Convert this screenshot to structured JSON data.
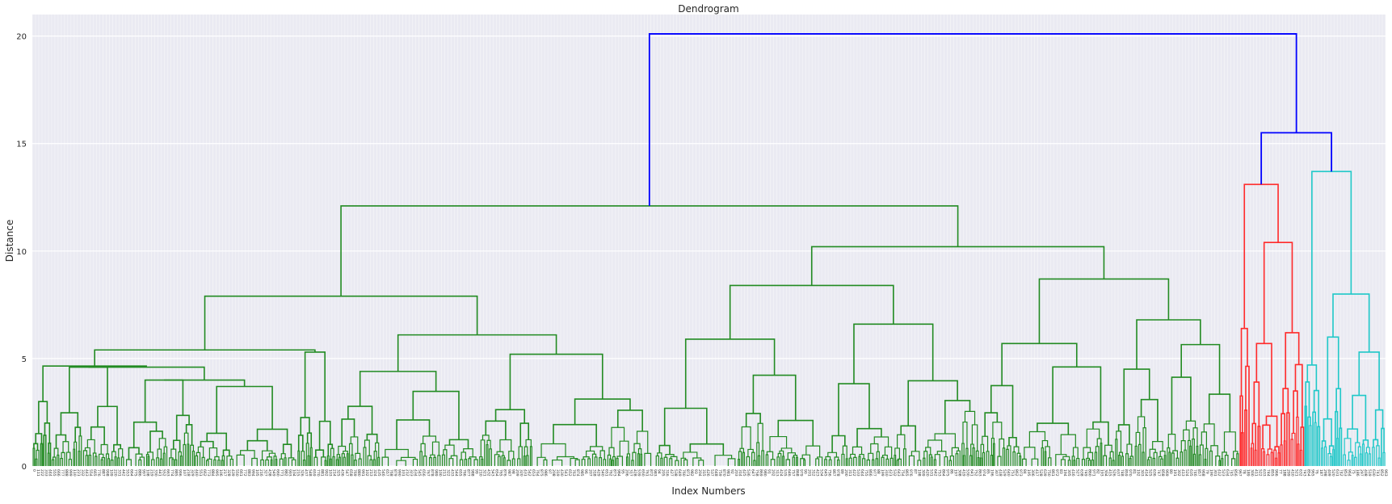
{
  "chart_data": {
    "type": "dendrogram",
    "title": "Dendrogram",
    "xlabel": "Index Numbers",
    "ylabel": "Distance",
    "ylim": [
      0,
      21
    ],
    "yticks": [
      0,
      5,
      10,
      15,
      20
    ],
    "grid": true,
    "legend": "none",
    "leaf_count": 1000,
    "clusters": [
      {
        "color": "#228b22",
        "leaf_span": [
          0,
          0.892
        ]
      },
      {
        "color": "#ff2a2a",
        "leaf_span": [
          0.892,
          0.94
        ]
      },
      {
        "color": "#1fc8c8",
        "leaf_span": [
          0.94,
          1.0
        ]
      }
    ],
    "link_color_above_threshold": "#0000ff",
    "major_merges": [
      {
        "left": 0.469,
        "right": 0.946,
        "height": 20.1,
        "color": "#0000ff"
      },
      {
        "left": 0.924,
        "right": 0.968,
        "height": 15.5,
        "color": "#0000ff"
      },
      {
        "left": 0.916,
        "right": 0.932,
        "height": 13.1,
        "color": "#ff2a2a"
      },
      {
        "left": 0.948,
        "right": 0.976,
        "height": 13.7,
        "color": "#1fc8c8"
      },
      {
        "left": 0.9,
        "right": 0.918,
        "height": 10.4,
        "color": "#ff2a2a"
      },
      {
        "left": 0.96,
        "right": 0.984,
        "height": 8.0,
        "color": "#1fc8c8"
      },
      {
        "left": 0.243,
        "right": 0.71,
        "height": 12.1,
        "color": "#228b22"
      },
      {
        "left": 0.122,
        "right": 0.412,
        "height": 7.9,
        "color": "#228b22"
      },
      {
        "left": 0.629,
        "right": 0.792,
        "height": 10.2,
        "color": "#228b22"
      },
      {
        "left": 0.028,
        "right": 0.216,
        "height": 5.4,
        "color": "#228b22"
      },
      {
        "left": 0.34,
        "right": 0.484,
        "height": 6.1,
        "color": "#228b22"
      },
      {
        "left": 0.57,
        "right": 0.687,
        "height": 8.4,
        "color": "#228b22"
      },
      {
        "left": 0.74,
        "right": 0.844,
        "height": 8.7,
        "color": "#228b22"
      }
    ]
  }
}
